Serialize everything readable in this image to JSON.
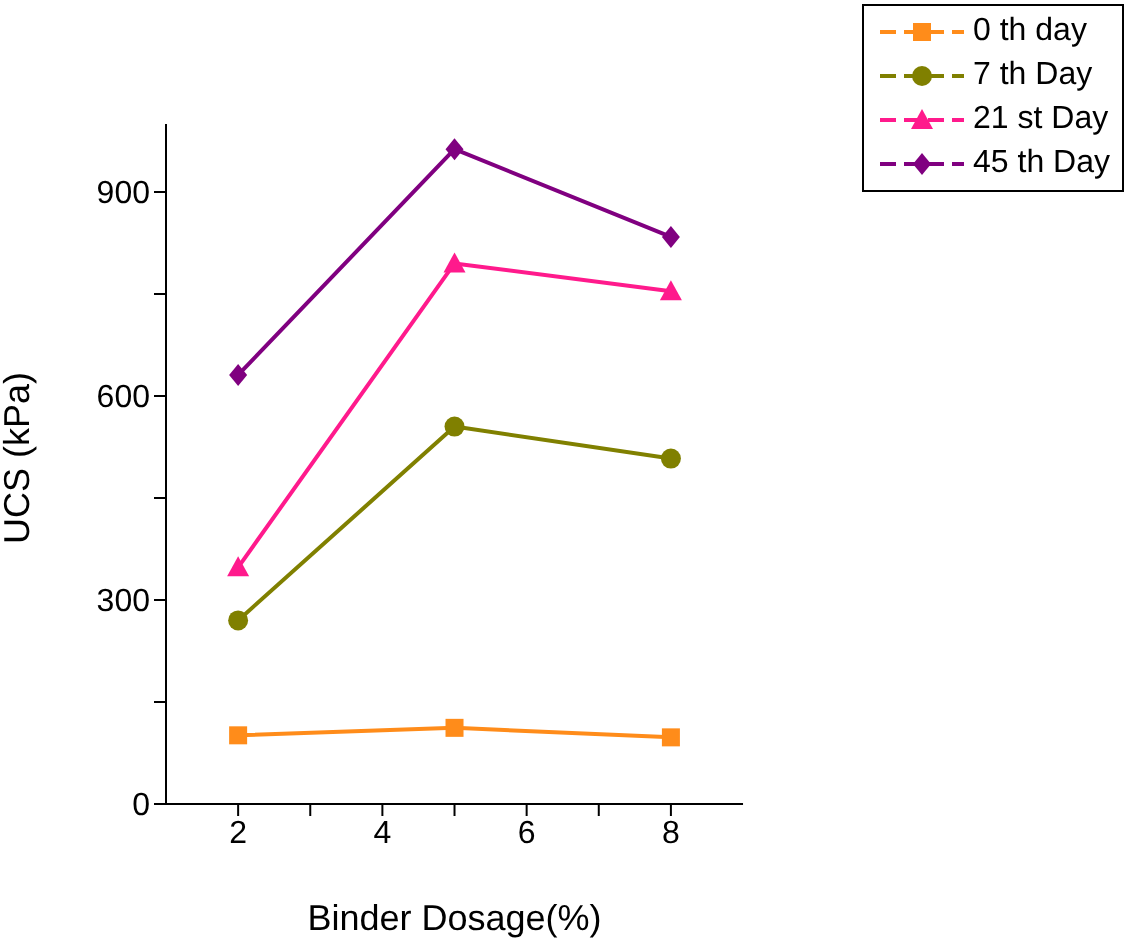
{
  "chart_data": {
    "type": "line",
    "xlabel": "Binder Dosage(%)",
    "ylabel": "UCS (kPa)",
    "x": [
      2,
      5,
      8
    ],
    "xlim": [
      1,
      9
    ],
    "xticks": [
      2,
      {
        "value": 3,
        "label": null
      },
      4,
      {
        "value": 5,
        "label": null
      },
      6,
      {
        "value": 7,
        "label": null
      },
      8
    ],
    "ylim": [
      0,
      1000
    ],
    "yticks": [
      0,
      {
        "value": 150,
        "label": null
      },
      300,
      {
        "value": 450,
        "label": null
      },
      600,
      {
        "value": 750,
        "label": null
      },
      900
    ],
    "grid": false,
    "legend": "top right",
    "line_style": "solid",
    "series": [
      {
        "name": "0 th day",
        "color": "#ff8c1a",
        "marker": "square",
        "values": [
          101,
          112,
          98
        ]
      },
      {
        "name": "7 th Day",
        "color": "#808000",
        "marker": "circle",
        "values": [
          270,
          555,
          508
        ]
      },
      {
        "name": "21 st Day",
        "color": "#ff1a8c",
        "marker": "triangle",
        "values": [
          348,
          795,
          754
        ]
      },
      {
        "name": "45 th Day",
        "color": "#800080",
        "marker": "diamond",
        "values": [
          631,
          963,
          834
        ]
      }
    ]
  }
}
